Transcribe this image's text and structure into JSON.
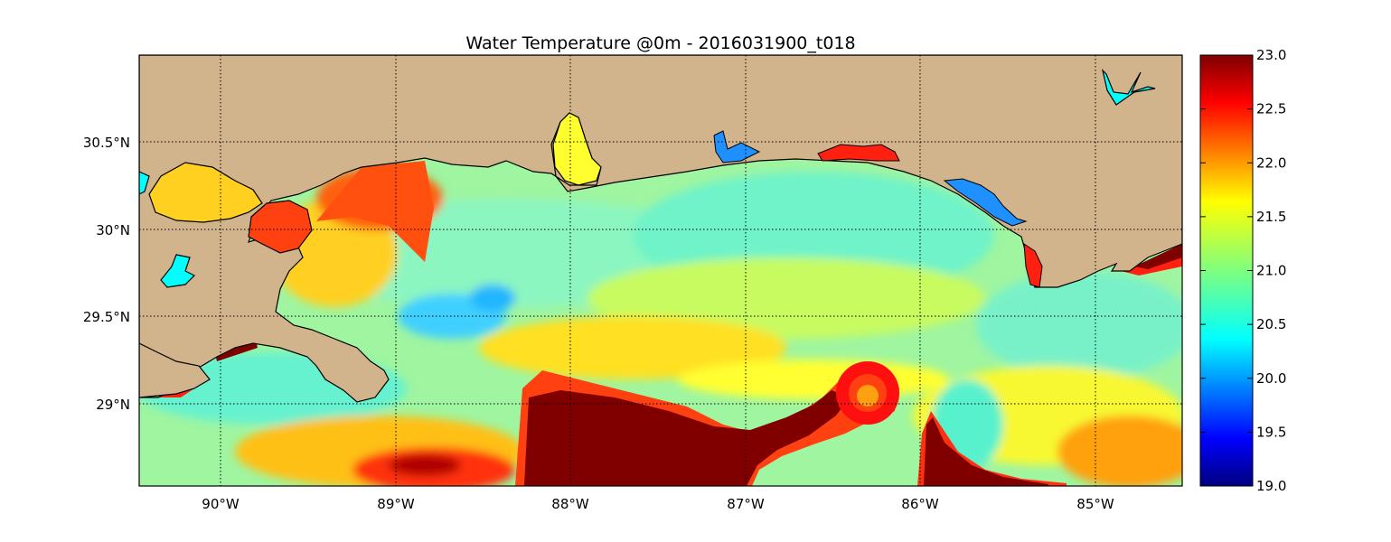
{
  "title": "Water Temperature @0m - 2016031900_t018",
  "map": {
    "lon_range": [
      -90.5,
      -84.5
    ],
    "lat_range": [
      28.53,
      31.0
    ],
    "lon_ticks": [
      {
        "value": -90,
        "label": "90°W"
      },
      {
        "value": -89,
        "label": "89°W"
      },
      {
        "value": -88,
        "label": "88°W"
      },
      {
        "value": -87,
        "label": "87°W"
      },
      {
        "value": -86,
        "label": "86°W"
      },
      {
        "value": -85,
        "label": "85°W"
      }
    ],
    "lat_ticks": [
      {
        "value": 30.5,
        "label": "30.5°N"
      },
      {
        "value": 30.0,
        "label": "30°N"
      },
      {
        "value": 29.5,
        "label": "29.5°N"
      },
      {
        "value": 29.0,
        "label": "29°N"
      }
    ],
    "grid": "dotted",
    "land_color": "#d2b48c",
    "lake_color": "#00ffff"
  },
  "colorbar": {
    "min": 19.0,
    "max": 23.0,
    "ticks": [
      "19.0",
      "19.5",
      "20.0",
      "20.5",
      "21.0",
      "21.5",
      "22.0",
      "22.5",
      "23.0"
    ],
    "colormap": "jet"
  }
}
